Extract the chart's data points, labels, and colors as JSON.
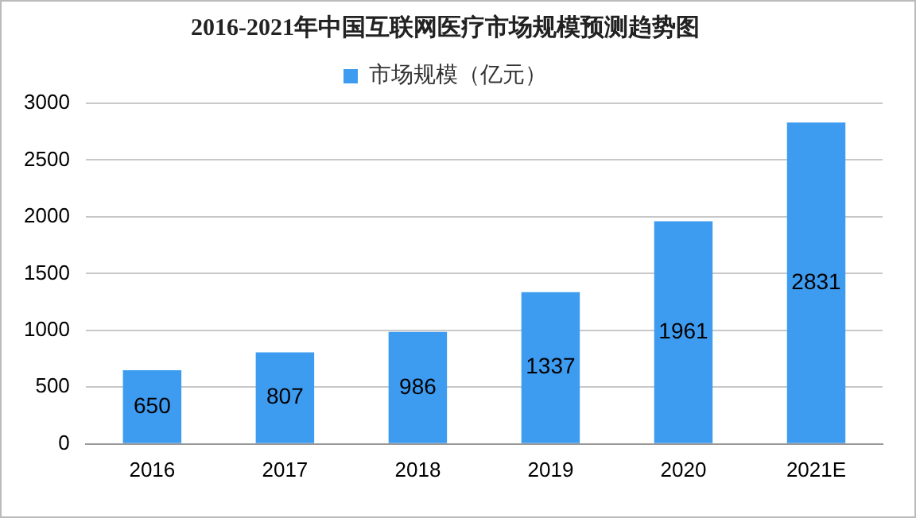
{
  "chart_data": {
    "type": "bar",
    "title": "2016-2021年中国互联网医疗市场规模预测趋势图",
    "categories": [
      "2016",
      "2017",
      "2018",
      "2019",
      "2020",
      "2021E"
    ],
    "series": [
      {
        "name": "市场规模（亿元）",
        "color": "#3d9bf0",
        "values": [
          650,
          807,
          986,
          1337,
          1961,
          2831
        ]
      }
    ],
    "ylim": [
      0,
      3000
    ],
    "yticks": [
      0,
      500,
      1000,
      1500,
      2000,
      2500,
      3000
    ],
    "grid": "y",
    "legend": "top",
    "data_labels": true
  }
}
